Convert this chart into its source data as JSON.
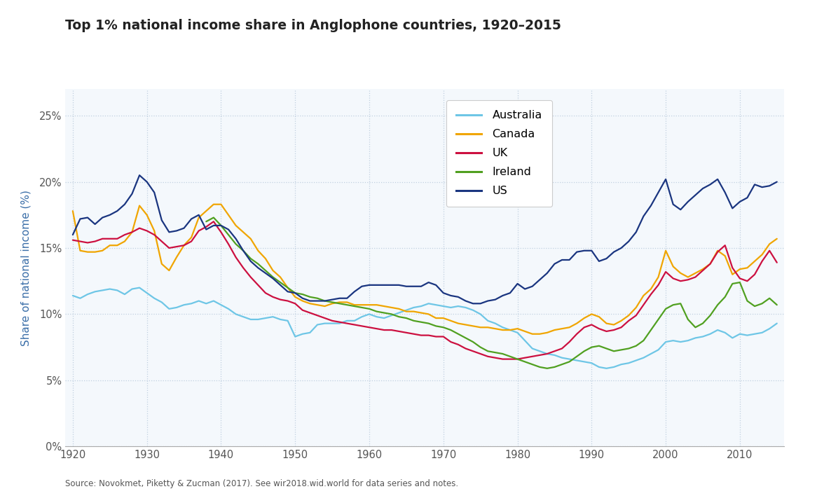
{
  "title": "Top 1% national income share in Anglophone countries, 1920–2015",
  "ylabel": "Share of national income (%)",
  "source": "Source: Novokmet, Piketty & Zucman (2017). See wir2018.wid.world for data series and notes.",
  "ylim": [
    0,
    0.27
  ],
  "yticks": [
    0,
    0.05,
    0.1,
    0.15,
    0.2,
    0.25
  ],
  "yticklabels": [
    "0%",
    "5%",
    "10%",
    "15%",
    "20%",
    "25%"
  ],
  "xlim": [
    1919,
    2016
  ],
  "xticks": [
    1920,
    1930,
    1940,
    1950,
    1960,
    1970,
    1980,
    1990,
    2000,
    2010
  ],
  "background_color": "#ffffff",
  "plot_bg_color": "#f4f8fc",
  "grid_color": "#c0d0e0",
  "colors": {
    "Australia": "#6ec6e6",
    "Canada": "#f0a500",
    "UK": "#cc1040",
    "Ireland": "#50a020",
    "US": "#1a3580"
  },
  "top_bar_color": "#4a90c4",
  "Australia": {
    "years": [
      1920,
      1921,
      1922,
      1923,
      1924,
      1925,
      1926,
      1927,
      1928,
      1929,
      1930,
      1931,
      1932,
      1933,
      1934,
      1935,
      1936,
      1937,
      1938,
      1939,
      1940,
      1941,
      1942,
      1943,
      1944,
      1945,
      1946,
      1947,
      1948,
      1949,
      1950,
      1951,
      1952,
      1953,
      1954,
      1955,
      1956,
      1957,
      1958,
      1959,
      1960,
      1961,
      1962,
      1963,
      1964,
      1965,
      1966,
      1967,
      1968,
      1969,
      1970,
      1971,
      1972,
      1973,
      1974,
      1975,
      1976,
      1977,
      1978,
      1979,
      1980,
      1981,
      1982,
      1983,
      1984,
      1985,
      1986,
      1987,
      1988,
      1989,
      1990,
      1991,
      1992,
      1993,
      1994,
      1995,
      1996,
      1997,
      1998,
      1999,
      2000,
      2001,
      2002,
      2003,
      2004,
      2005,
      2006,
      2007,
      2008,
      2009,
      2010,
      2011,
      2012,
      2013,
      2014,
      2015
    ],
    "values": [
      0.114,
      0.112,
      0.115,
      0.117,
      0.118,
      0.119,
      0.118,
      0.115,
      0.119,
      0.12,
      0.116,
      0.112,
      0.109,
      0.104,
      0.105,
      0.107,
      0.108,
      0.11,
      0.108,
      0.11,
      0.107,
      0.104,
      0.1,
      0.098,
      0.096,
      0.096,
      0.097,
      0.098,
      0.096,
      0.095,
      0.083,
      0.085,
      0.086,
      0.092,
      0.093,
      0.093,
      0.093,
      0.095,
      0.095,
      0.098,
      0.1,
      0.098,
      0.097,
      0.099,
      0.101,
      0.103,
      0.105,
      0.106,
      0.108,
      0.107,
      0.106,
      0.105,
      0.106,
      0.105,
      0.103,
      0.1,
      0.095,
      0.093,
      0.09,
      0.088,
      0.086,
      0.08,
      0.074,
      0.072,
      0.07,
      0.069,
      0.067,
      0.066,
      0.065,
      0.064,
      0.063,
      0.06,
      0.059,
      0.06,
      0.062,
      0.063,
      0.065,
      0.067,
      0.07,
      0.073,
      0.079,
      0.08,
      0.079,
      0.08,
      0.082,
      0.083,
      0.085,
      0.088,
      0.086,
      0.082,
      0.085,
      0.084,
      0.085,
      0.086,
      0.089,
      0.093
    ]
  },
  "Canada": {
    "years": [
      1920,
      1921,
      1922,
      1923,
      1924,
      1925,
      1926,
      1927,
      1928,
      1929,
      1930,
      1931,
      1932,
      1933,
      1934,
      1935,
      1936,
      1937,
      1938,
      1939,
      1940,
      1941,
      1942,
      1943,
      1944,
      1945,
      1946,
      1947,
      1948,
      1949,
      1950,
      1951,
      1952,
      1953,
      1954,
      1955,
      1956,
      1957,
      1958,
      1959,
      1960,
      1961,
      1962,
      1963,
      1964,
      1965,
      1966,
      1967,
      1968,
      1969,
      1970,
      1971,
      1972,
      1973,
      1974,
      1975,
      1976,
      1977,
      1978,
      1979,
      1980,
      1981,
      1982,
      1983,
      1984,
      1985,
      1986,
      1987,
      1988,
      1989,
      1990,
      1991,
      1992,
      1993,
      1994,
      1995,
      1996,
      1997,
      1998,
      1999,
      2000,
      2001,
      2002,
      2003,
      2004,
      2005,
      2006,
      2007,
      2008,
      2009,
      2010,
      2011,
      2012,
      2013,
      2014,
      2015
    ],
    "values": [
      0.178,
      0.148,
      0.147,
      0.147,
      0.148,
      0.152,
      0.152,
      0.155,
      0.162,
      0.182,
      0.175,
      0.163,
      0.138,
      0.133,
      0.143,
      0.152,
      0.158,
      0.173,
      0.178,
      0.183,
      0.183,
      0.175,
      0.167,
      0.162,
      0.157,
      0.148,
      0.142,
      0.133,
      0.128,
      0.12,
      0.113,
      0.11,
      0.108,
      0.107,
      0.106,
      0.108,
      0.109,
      0.109,
      0.107,
      0.107,
      0.107,
      0.107,
      0.106,
      0.105,
      0.104,
      0.102,
      0.102,
      0.101,
      0.1,
      0.097,
      0.097,
      0.095,
      0.093,
      0.092,
      0.091,
      0.09,
      0.09,
      0.089,
      0.088,
      0.088,
      0.089,
      0.087,
      0.085,
      0.085,
      0.086,
      0.088,
      0.089,
      0.09,
      0.093,
      0.097,
      0.1,
      0.098,
      0.093,
      0.092,
      0.095,
      0.099,
      0.105,
      0.114,
      0.119,
      0.128,
      0.148,
      0.136,
      0.131,
      0.128,
      0.131,
      0.134,
      0.138,
      0.148,
      0.144,
      0.13,
      0.134,
      0.135,
      0.14,
      0.145,
      0.153,
      0.157
    ]
  },
  "UK": {
    "years": [
      1920,
      1921,
      1922,
      1923,
      1924,
      1925,
      1926,
      1927,
      1928,
      1929,
      1930,
      1931,
      1932,
      1933,
      1934,
      1935,
      1936,
      1937,
      1938,
      1939,
      1940,
      1941,
      1942,
      1943,
      1944,
      1945,
      1946,
      1947,
      1948,
      1949,
      1950,
      1951,
      1952,
      1953,
      1954,
      1955,
      1956,
      1957,
      1958,
      1959,
      1960,
      1961,
      1962,
      1963,
      1964,
      1965,
      1966,
      1967,
      1968,
      1969,
      1970,
      1971,
      1972,
      1973,
      1974,
      1975,
      1976,
      1977,
      1978,
      1979,
      1980,
      1981,
      1982,
      1983,
      1984,
      1985,
      1986,
      1987,
      1988,
      1989,
      1990,
      1991,
      1992,
      1993,
      1994,
      1995,
      1996,
      1997,
      1998,
      1999,
      2000,
      2001,
      2002,
      2003,
      2004,
      2005,
      2006,
      2007,
      2008,
      2009,
      2010,
      2011,
      2012,
      2013,
      2014,
      2015
    ],
    "values": [
      0.156,
      0.155,
      0.154,
      0.155,
      0.157,
      0.157,
      0.157,
      0.16,
      0.162,
      0.165,
      0.163,
      0.16,
      0.155,
      0.15,
      0.151,
      0.152,
      0.155,
      0.163,
      0.166,
      0.17,
      0.162,
      0.153,
      0.143,
      0.135,
      0.128,
      0.122,
      0.116,
      0.113,
      0.111,
      0.11,
      0.108,
      0.103,
      0.101,
      0.099,
      0.097,
      0.095,
      0.094,
      0.093,
      0.092,
      0.091,
      0.09,
      0.089,
      0.088,
      0.088,
      0.087,
      0.086,
      0.085,
      0.084,
      0.084,
      0.083,
      0.083,
      0.079,
      0.077,
      0.074,
      0.072,
      0.07,
      0.068,
      0.067,
      0.066,
      0.066,
      0.066,
      0.067,
      0.068,
      0.069,
      0.07,
      0.072,
      0.074,
      0.079,
      0.085,
      0.09,
      0.092,
      0.089,
      0.087,
      0.088,
      0.09,
      0.095,
      0.099,
      0.107,
      0.115,
      0.122,
      0.132,
      0.127,
      0.125,
      0.126,
      0.128,
      0.133,
      0.138,
      0.147,
      0.152,
      0.135,
      0.127,
      0.125,
      0.13,
      0.14,
      0.148,
      0.139
    ]
  },
  "Ireland": {
    "years": [
      1938,
      1939,
      1940,
      1941,
      1942,
      1943,
      1944,
      1945,
      1946,
      1947,
      1948,
      1949,
      1950,
      1951,
      1952,
      1953,
      1954,
      1955,
      1956,
      1957,
      1958,
      1959,
      1960,
      1961,
      1962,
      1963,
      1964,
      1965,
      1966,
      1967,
      1968,
      1969,
      1970,
      1971,
      1972,
      1973,
      1974,
      1975,
      1976,
      1977,
      1978,
      1979,
      1980,
      1981,
      1982,
      1983,
      1984,
      1985,
      1986,
      1987,
      1988,
      1989,
      1990,
      1991,
      1992,
      1993,
      1994,
      1995,
      1996,
      1997,
      1998,
      1999,
      2000,
      2001,
      2002,
      2003,
      2004,
      2005,
      2006,
      2007,
      2008,
      2009,
      2010,
      2011,
      2012,
      2013,
      2014,
      2015
    ],
    "values": [
      0.17,
      0.173,
      0.167,
      0.16,
      0.153,
      0.148,
      0.142,
      0.138,
      0.133,
      0.128,
      0.124,
      0.12,
      0.116,
      0.115,
      0.113,
      0.112,
      0.11,
      0.109,
      0.108,
      0.107,
      0.106,
      0.105,
      0.104,
      0.102,
      0.101,
      0.1,
      0.098,
      0.097,
      0.095,
      0.094,
      0.093,
      0.091,
      0.09,
      0.088,
      0.085,
      0.082,
      0.079,
      0.075,
      0.072,
      0.071,
      0.07,
      0.068,
      0.066,
      0.064,
      0.062,
      0.06,
      0.059,
      0.06,
      0.062,
      0.064,
      0.068,
      0.072,
      0.075,
      0.076,
      0.074,
      0.072,
      0.073,
      0.074,
      0.076,
      0.08,
      0.088,
      0.096,
      0.104,
      0.107,
      0.108,
      0.096,
      0.09,
      0.093,
      0.099,
      0.107,
      0.113,
      0.123,
      0.124,
      0.11,
      0.106,
      0.108,
      0.112,
      0.107
    ]
  },
  "US": {
    "years": [
      1920,
      1921,
      1922,
      1923,
      1924,
      1925,
      1926,
      1927,
      1928,
      1929,
      1930,
      1931,
      1932,
      1933,
      1934,
      1935,
      1936,
      1937,
      1938,
      1939,
      1940,
      1941,
      1942,
      1943,
      1944,
      1945,
      1946,
      1947,
      1948,
      1949,
      1950,
      1951,
      1952,
      1953,
      1954,
      1955,
      1956,
      1957,
      1958,
      1959,
      1960,
      1961,
      1962,
      1963,
      1964,
      1965,
      1966,
      1967,
      1968,
      1969,
      1970,
      1971,
      1972,
      1973,
      1974,
      1975,
      1976,
      1977,
      1978,
      1979,
      1980,
      1981,
      1982,
      1983,
      1984,
      1985,
      1986,
      1987,
      1988,
      1989,
      1990,
      1991,
      1992,
      1993,
      1994,
      1995,
      1996,
      1997,
      1998,
      1999,
      2000,
      2001,
      2002,
      2003,
      2004,
      2005,
      2006,
      2007,
      2008,
      2009,
      2010,
      2011,
      2012,
      2013,
      2014,
      2015
    ],
    "values": [
      0.16,
      0.172,
      0.173,
      0.168,
      0.173,
      0.175,
      0.178,
      0.183,
      0.191,
      0.205,
      0.2,
      0.192,
      0.171,
      0.162,
      0.163,
      0.165,
      0.172,
      0.175,
      0.164,
      0.167,
      0.167,
      0.164,
      0.157,
      0.148,
      0.14,
      0.135,
      0.131,
      0.127,
      0.122,
      0.117,
      0.116,
      0.112,
      0.11,
      0.11,
      0.11,
      0.111,
      0.112,
      0.112,
      0.117,
      0.121,
      0.122,
      0.122,
      0.122,
      0.122,
      0.122,
      0.121,
      0.121,
      0.121,
      0.124,
      0.122,
      0.116,
      0.114,
      0.113,
      0.11,
      0.108,
      0.108,
      0.11,
      0.111,
      0.114,
      0.116,
      0.123,
      0.119,
      0.121,
      0.126,
      0.131,
      0.138,
      0.141,
      0.141,
      0.147,
      0.148,
      0.148,
      0.14,
      0.142,
      0.147,
      0.15,
      0.155,
      0.162,
      0.174,
      0.182,
      0.192,
      0.202,
      0.183,
      0.179,
      0.185,
      0.19,
      0.195,
      0.198,
      0.202,
      0.192,
      0.18,
      0.185,
      0.188,
      0.198,
      0.196,
      0.197,
      0.2
    ]
  }
}
